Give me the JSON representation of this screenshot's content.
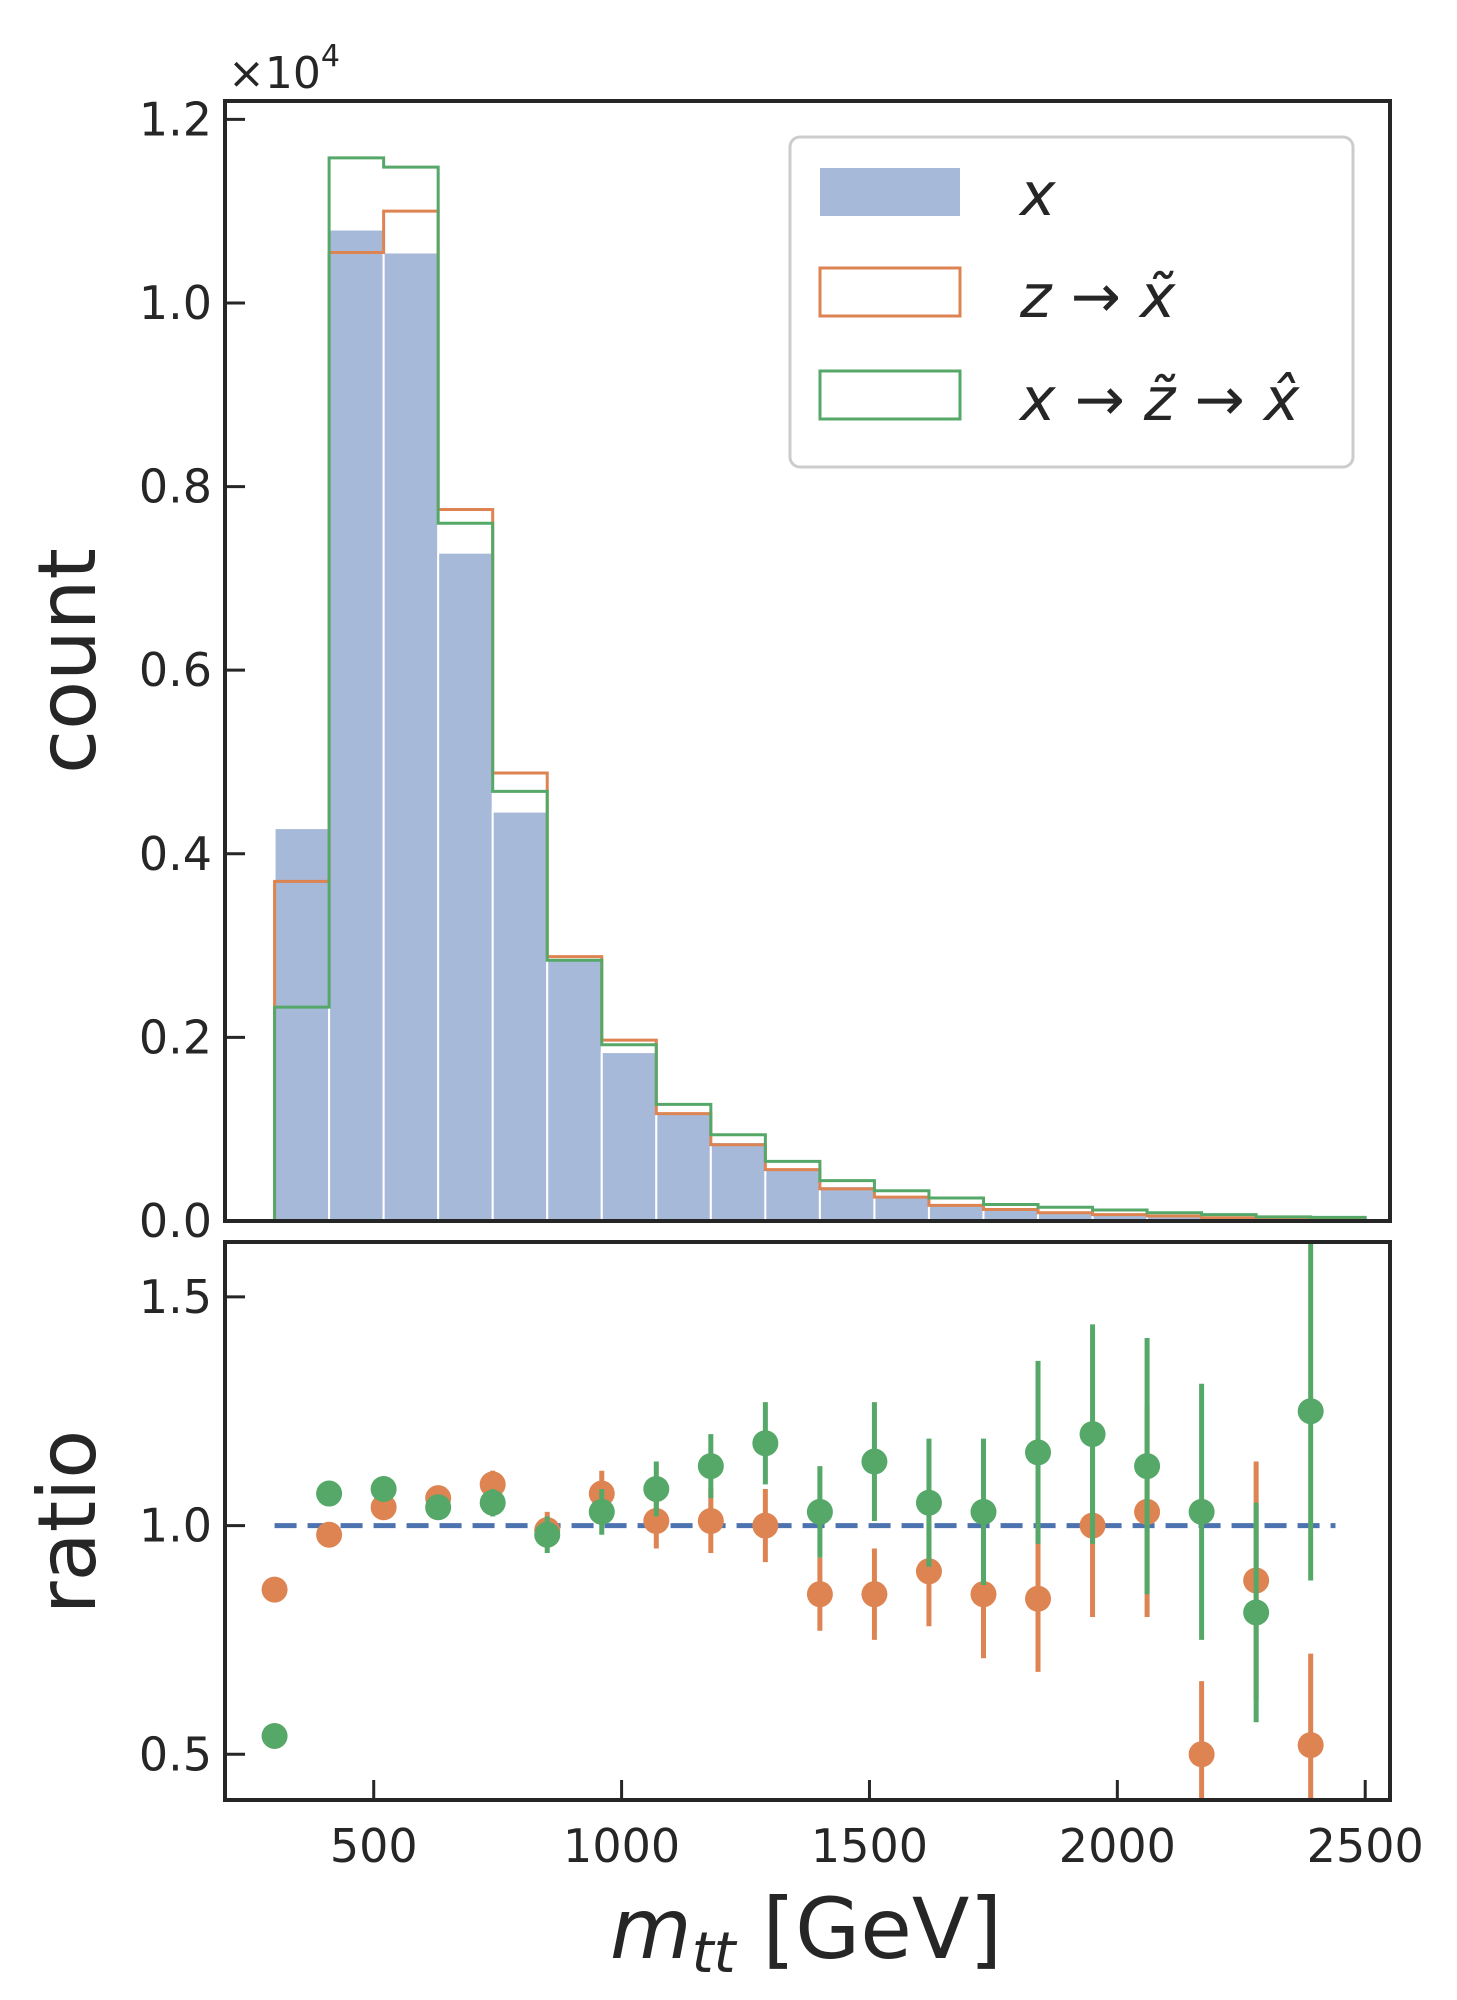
{
  "chart_data": [
    {
      "type": "histogram",
      "panel": "main",
      "ylabel": "count",
      "offset_label": "×10",
      "offset_exponent": "4",
      "bin_edges": [
        300,
        410,
        520,
        630,
        740,
        850,
        960,
        1070,
        1180,
        1290,
        1400,
        1510,
        1620,
        1730,
        1840,
        1950,
        2060,
        2170,
        2280,
        2390,
        2500
      ],
      "ylim": [
        0,
        12200
      ],
      "yticks": [
        "0.0",
        "0.2",
        "0.4",
        "0.6",
        "0.8",
        "1.0",
        "1.2"
      ],
      "ytick_values": [
        0,
        2000,
        4000,
        6000,
        8000,
        10000,
        12000
      ],
      "legend_position": "top-right",
      "series": [
        {
          "name": "x",
          "style": "filled",
          "color": "#a7b9d8",
          "values": [
            4280,
            10800,
            10550,
            7280,
            4460,
            2860,
            1840,
            1180,
            860,
            570,
            380,
            260,
            180,
            130,
            95,
            70,
            55,
            40,
            30,
            22
          ]
        },
        {
          "name": "z → x̃",
          "style": "step",
          "color": "#dd8452",
          "values": [
            3700,
            10550,
            11000,
            7750,
            4880,
            2880,
            1970,
            1170,
            830,
            560,
            350,
            260,
            170,
            125,
            90,
            70,
            55,
            35,
            30,
            20
          ]
        },
        {
          "name": "x → z̃ → x̂",
          "style": "step",
          "color": "#55a868",
          "values": [
            2330,
            11580,
            11480,
            7600,
            4680,
            2840,
            1920,
            1270,
            940,
            650,
            440,
            330,
            250,
            180,
            150,
            120,
            90,
            70,
            45,
            40
          ]
        }
      ]
    },
    {
      "type": "scatter",
      "panel": "ratio",
      "xlabel_main": "m",
      "xlabel_sub": "tt",
      "xlabel_unit": " [GeV]",
      "ylabel": "ratio",
      "xlim": [
        200,
        2550
      ],
      "ylim": [
        0.4,
        1.62
      ],
      "xticks": [
        "500",
        "1000",
        "1500",
        "2000",
        "2500"
      ],
      "xtick_values": [
        500,
        1000,
        1500,
        2000,
        2500
      ],
      "yticks": [
        "0.5",
        "1.0",
        "1.5"
      ],
      "ytick_values": [
        0.5,
        1.0,
        1.5
      ],
      "reference_line": {
        "y": 1.0,
        "x_range": [
          300,
          2440
        ],
        "color": "#4c72b0"
      },
      "x": [
        300,
        410,
        520,
        630,
        740,
        850,
        960,
        1070,
        1180,
        1290,
        1400,
        1510,
        1620,
        1730,
        1840,
        1950,
        2060,
        2170,
        2280,
        2390
      ],
      "series": [
        {
          "name": "z → x̃",
          "color": "#dd8452",
          "values": [
            0.86,
            0.98,
            1.04,
            1.06,
            1.09,
            0.99,
            1.07,
            1.01,
            1.01,
            1.0,
            0.85,
            0.85,
            0.9,
            0.85,
            0.84,
            1.0,
            1.03,
            0.5,
            0.88,
            0.52
          ],
          "errors": [
            0.01,
            0.01,
            0.01,
            0.02,
            0.03,
            0.04,
            0.05,
            0.06,
            0.07,
            0.08,
            0.08,
            0.1,
            0.12,
            0.14,
            0.16,
            0.2,
            0.23,
            0.16,
            0.26,
            0.2
          ]
        },
        {
          "name": "x → z̃ → x̂",
          "color": "#55a868",
          "values": [
            0.54,
            1.07,
            1.08,
            1.04,
            1.05,
            0.98,
            1.03,
            1.08,
            1.13,
            1.18,
            1.03,
            1.14,
            1.05,
            1.03,
            1.16,
            1.2,
            1.13,
            1.03,
            0.81,
            1.25
          ],
          "errors": [
            0.01,
            0.01,
            0.01,
            0.02,
            0.03,
            0.04,
            0.05,
            0.06,
            0.07,
            0.09,
            0.1,
            0.13,
            0.14,
            0.16,
            0.2,
            0.24,
            0.28,
            0.28,
            0.24,
            0.37
          ]
        }
      ]
    }
  ]
}
